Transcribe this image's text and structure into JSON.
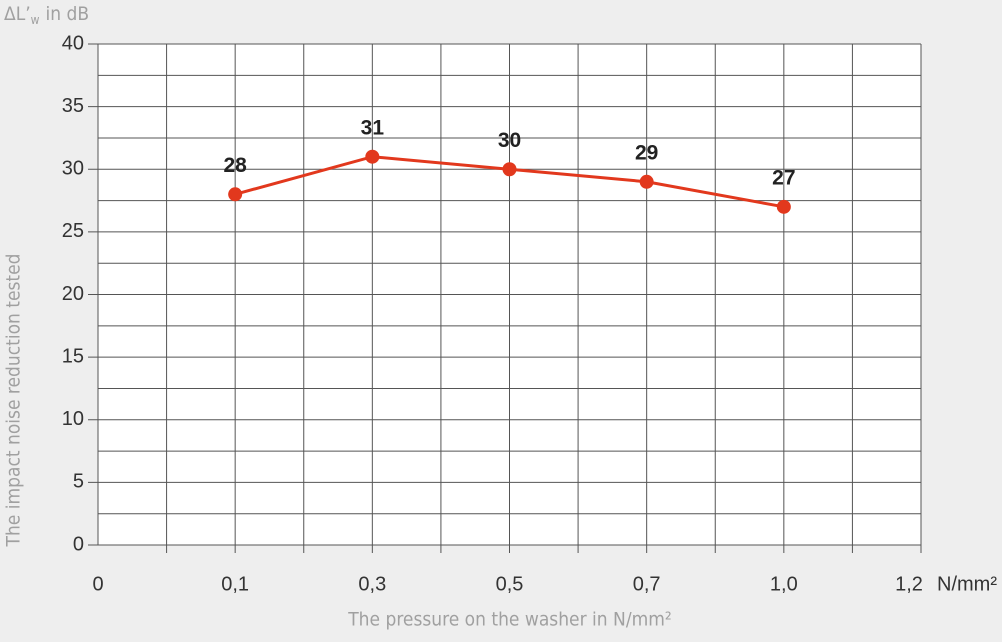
{
  "chart_data": {
    "type": "line",
    "y_unit": {
      "symbol": "ΔL’",
      "subscript": "w",
      "suffix": "in dB"
    },
    "y_title": "The impact noise reduction tested",
    "x_title": "The pressure on the washer in N/mm²",
    "x_unit": "N/mm²",
    "categories": [
      "0",
      "0,1",
      "0,3",
      "0,5",
      "0,7",
      "1,0",
      "1,2"
    ],
    "series": [
      {
        "name": "ΔL’w",
        "color": "#e2381d",
        "values": [
          null,
          28,
          31,
          30,
          29,
          27,
          null
        ]
      }
    ],
    "ylim": [
      0,
      40
    ],
    "yticks": [
      0,
      5,
      10,
      15,
      20,
      25,
      30,
      35,
      40
    ],
    "minor_yticks": [
      2.5,
      7.5,
      12.5,
      17.5,
      22.5,
      27.5,
      32.5,
      37.5
    ],
    "grid": true,
    "data_labels": true
  }
}
